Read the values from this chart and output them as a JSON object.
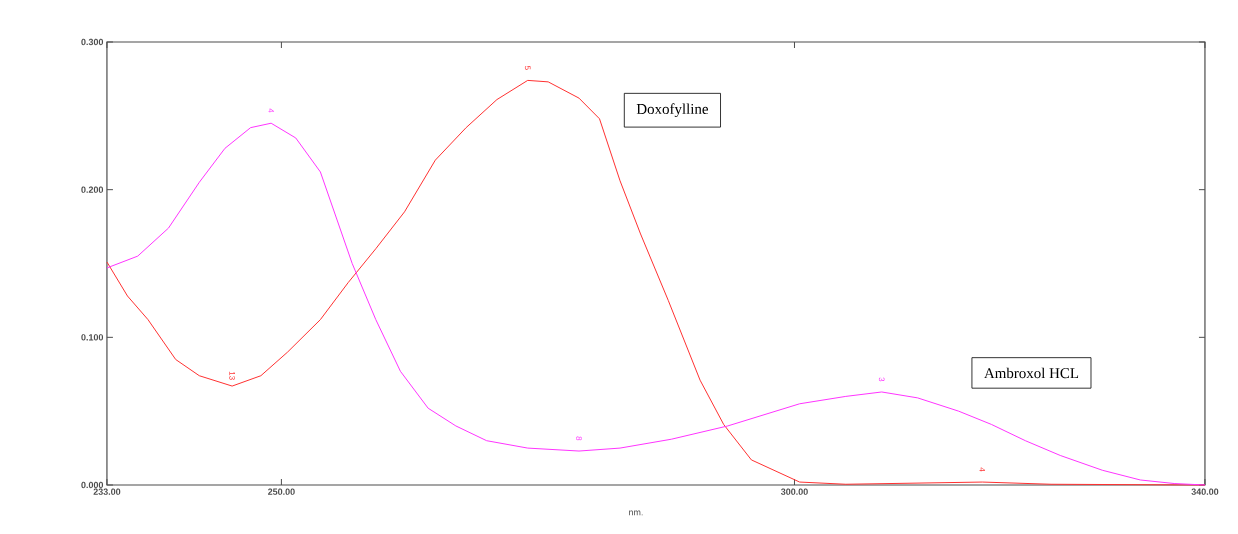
{
  "chart_data": {
    "type": "line",
    "xlabel": "nm.",
    "xlim": [
      233,
      340
    ],
    "ylim": [
      0,
      0.3
    ],
    "xticks": [
      {
        "value": 233,
        "label": "233.00"
      },
      {
        "value": 250,
        "label": "250.00"
      },
      {
        "value": 300,
        "label": "300.00"
      },
      {
        "value": 340,
        "label": "340.00"
      }
    ],
    "yticks": [
      {
        "value": 0,
        "label": "0.000"
      },
      {
        "value": 0.1,
        "label": "0.100"
      },
      {
        "value": 0.2,
        "label": "0.200"
      },
      {
        "value": 0.3,
        "label": "0.300"
      }
    ],
    "grid": false,
    "legend": false,
    "marker": "none",
    "line_style": "solid",
    "series": [
      {
        "name": "Doxofylline",
        "color": "#ff3030",
        "x": [
          233,
          235,
          237,
          239.7,
          242,
          245.2,
          248,
          250.6,
          253.8,
          256.5,
          259.2,
          262,
          265,
          268,
          271,
          274,
          276,
          279,
          281,
          283,
          285,
          287.7,
          290.8,
          293.1,
          295.8,
          300.5,
          305,
          318.3,
          325,
          340
        ],
        "values": [
          0.151,
          0.128,
          0.112,
          0.085,
          0.074,
          0.067,
          0.074,
          0.09,
          0.112,
          0.137,
          0.16,
          0.185,
          0.22,
          0.242,
          0.261,
          0.274,
          0.273,
          0.262,
          0.248,
          0.206,
          0.17,
          0.125,
          0.071,
          0.041,
          0.017,
          0.002,
          0.0005,
          0.002,
          0.0005,
          0
        ]
      },
      {
        "name": "Ambroxol HCL",
        "color": "#ff33ff",
        "x": [
          233,
          236,
          239,
          242,
          244.5,
          247,
          249,
          251.4,
          253.8,
          256.9,
          259.2,
          261.6,
          264.3,
          267,
          270,
          274,
          279,
          283,
          288,
          293.5,
          300.5,
          305,
          308.5,
          312,
          316,
          319.2,
          322.5,
          325.9,
          330,
          333.7,
          337,
          340
        ],
        "values": [
          0.147,
          0.155,
          0.174,
          0.205,
          0.228,
          0.242,
          0.245,
          0.235,
          0.212,
          0.15,
          0.112,
          0.077,
          0.052,
          0.04,
          0.03,
          0.025,
          0.023,
          0.025,
          0.031,
          0.04,
          0.055,
          0.06,
          0.063,
          0.059,
          0.05,
          0.041,
          0.03,
          0.02,
          0.01,
          0.0034,
          0.001,
          0
        ]
      }
    ],
    "annotations": [
      {
        "text": "4",
        "x": 249,
        "y": 0.245
      },
      {
        "text": "5",
        "x": 274,
        "y": 0.274
      },
      {
        "text": "13",
        "x": 245.2,
        "y": 0.067
      },
      {
        "text": "8",
        "x": 279,
        "y": 0.023
      },
      {
        "text": "3",
        "x": 308.5,
        "y": 0.063
      },
      {
        "text": "4",
        "x": 318.3,
        "y": 0.002
      }
    ]
  }
}
